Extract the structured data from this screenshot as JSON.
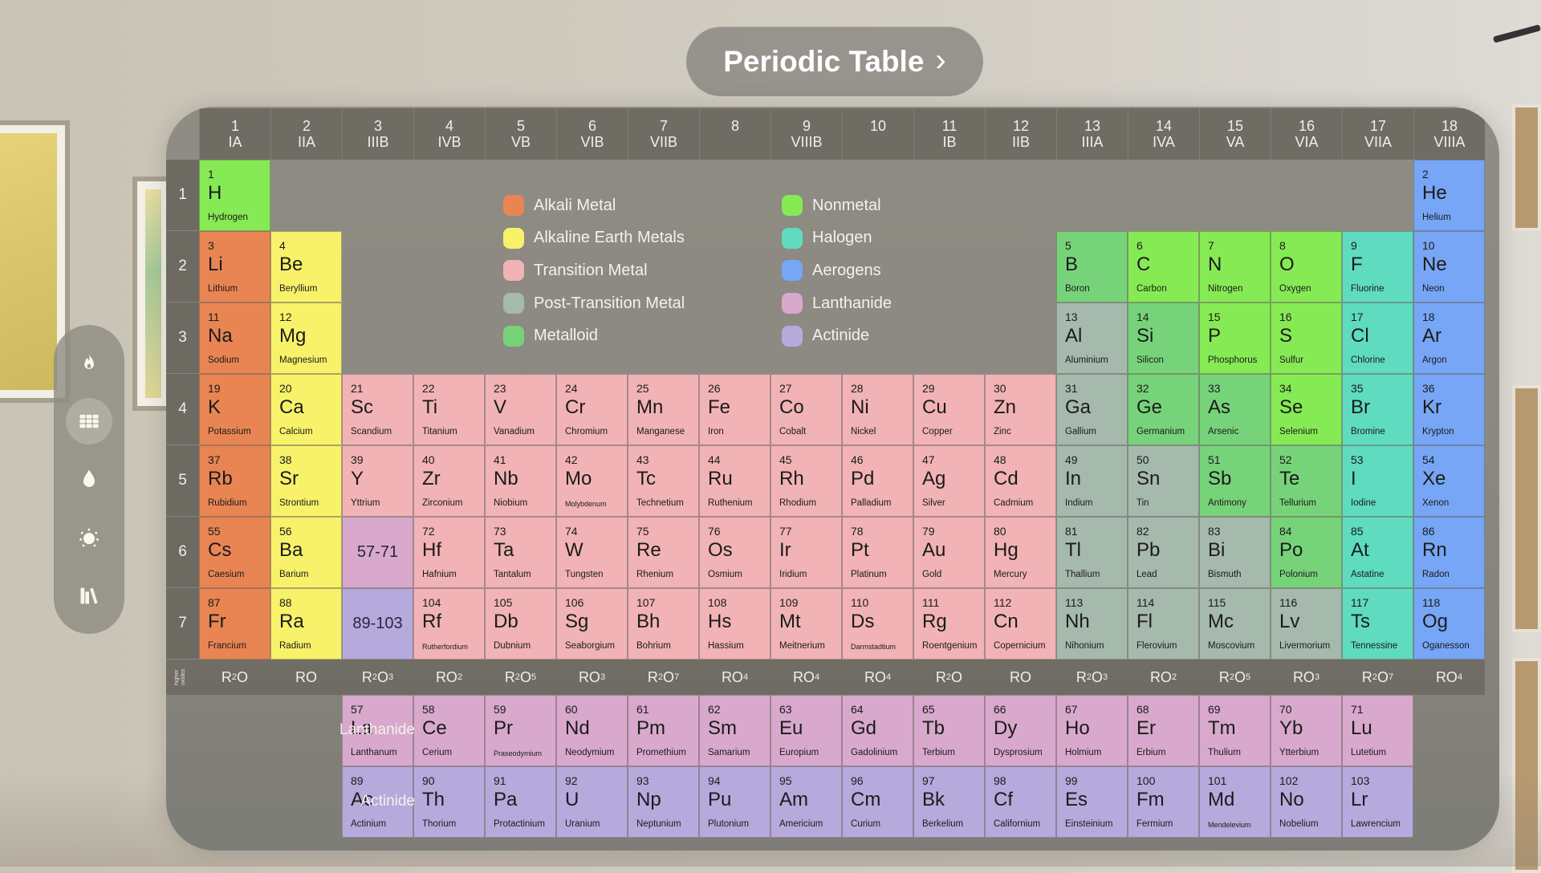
{
  "title": "Periodic Table",
  "title_chevron": "›",
  "sidebar": {
    "items": [
      {
        "id": "flame",
        "label": "Reactions",
        "active": false
      },
      {
        "id": "grid",
        "label": "Periodic Table",
        "active": true
      },
      {
        "id": "drop",
        "label": "Solutions",
        "active": false
      },
      {
        "id": "dial",
        "label": "Measurements",
        "active": false
      },
      {
        "id": "books",
        "label": "Library",
        "active": false
      }
    ]
  },
  "categories": {
    "alkali": {
      "label": "Alkali Metal",
      "color": "#e98553"
    },
    "alkaline": {
      "label": "Alkaline Earth Metals",
      "color": "#f7f26a"
    },
    "transition": {
      "label": "Transition Metal",
      "color": "#f1b3b5"
    },
    "post": {
      "label": "Post-Transition Metal",
      "color": "#a5b9ad"
    },
    "metalloid": {
      "label": "Metalloid",
      "color": "#77d37a"
    },
    "nonmetal": {
      "label": "Nonmetal",
      "color": "#86ea54"
    },
    "halogen": {
      "label": "Halogen",
      "color": "#5fdbbf"
    },
    "noble": {
      "label": "Aerogens",
      "color": "#76a6f5"
    },
    "lanthanide": {
      "label": "Lanthanide",
      "color": "#d8a9cc"
    },
    "actinide": {
      "label": "Actinide",
      "color": "#b6a9dc"
    }
  },
  "legend": {
    "left": [
      "alkali",
      "alkaline",
      "transition",
      "post",
      "metalloid"
    ],
    "right": [
      "nonmetal",
      "halogen",
      "noble",
      "lanthanide",
      "actinide"
    ]
  },
  "groups": [
    {
      "n": "1",
      "r": "IA"
    },
    {
      "n": "2",
      "r": "IIA"
    },
    {
      "n": "3",
      "r": "IIIB"
    },
    {
      "n": "4",
      "r": "IVB"
    },
    {
      "n": "5",
      "r": "VB"
    },
    {
      "n": "6",
      "r": "VIB"
    },
    {
      "n": "7",
      "r": "VIIB"
    },
    {
      "n": "8",
      "r": ""
    },
    {
      "n": "9",
      "r": "VIIIB"
    },
    {
      "n": "10",
      "r": ""
    },
    {
      "n": "11",
      "r": "IB"
    },
    {
      "n": "12",
      "r": "IIB"
    },
    {
      "n": "13",
      "r": "IIIA"
    },
    {
      "n": "14",
      "r": "IVA"
    },
    {
      "n": "15",
      "r": "VA"
    },
    {
      "n": "16",
      "r": "VIA"
    },
    {
      "n": "17",
      "r": "VIIA"
    },
    {
      "n": "18",
      "r": "VIIIA"
    }
  ],
  "periods": [
    "1",
    "2",
    "3",
    "4",
    "5",
    "6",
    "7"
  ],
  "oxides_label": "higher oxides",
  "oxides": [
    [
      "R",
      "2",
      "O",
      ""
    ],
    [
      "RO",
      "",
      ""
    ],
    [
      "R",
      "2",
      "O",
      "3"
    ],
    [
      "RO",
      "",
      "",
      "2"
    ],
    [
      "R",
      "2",
      "O",
      "5"
    ],
    [
      "RO",
      "",
      "",
      "3"
    ],
    [
      "R",
      "2",
      "O",
      "7"
    ],
    [
      "RO",
      "",
      "",
      "4"
    ],
    [
      "RO",
      "",
      "",
      "4"
    ],
    [
      "RO",
      "",
      "",
      "4"
    ],
    [
      "R",
      "2",
      "O",
      ""
    ],
    [
      "RO",
      "",
      ""
    ],
    [
      "R",
      "2",
      "O",
      "3"
    ],
    [
      "RO",
      "",
      "",
      "2"
    ],
    [
      "R",
      "2",
      "O",
      "5"
    ],
    [
      "RO",
      "",
      "",
      "3"
    ],
    [
      "R",
      "2",
      "O",
      "7"
    ],
    [
      "RO",
      "",
      "",
      "4"
    ]
  ],
  "series_labels": {
    "lanthanide": "Lanthanide",
    "actinide": "Actinide"
  },
  "placeholders": [
    {
      "text": "57-71",
      "row": 6,
      "col": 3,
      "cat": "lanthanide"
    },
    {
      "text": "89-103",
      "row": 7,
      "col": 3,
      "cat": "actinide"
    }
  ],
  "elements": [
    {
      "z": 1,
      "s": "H",
      "n": "Hydrogen",
      "r": 1,
      "c": 1,
      "cat": "nonmetal"
    },
    {
      "z": 2,
      "s": "He",
      "n": "Helium",
      "r": 1,
      "c": 18,
      "cat": "noble"
    },
    {
      "z": 3,
      "s": "Li",
      "n": "Lithium",
      "r": 2,
      "c": 1,
      "cat": "alkali"
    },
    {
      "z": 4,
      "s": "Be",
      "n": "Beryllium",
      "r": 2,
      "c": 2,
      "cat": "alkaline"
    },
    {
      "z": 5,
      "s": "B",
      "n": "Boron",
      "r": 2,
      "c": 13,
      "cat": "metalloid"
    },
    {
      "z": 6,
      "s": "C",
      "n": "Carbon",
      "r": 2,
      "c": 14,
      "cat": "nonmetal"
    },
    {
      "z": 7,
      "s": "N",
      "n": "Nitrogen",
      "r": 2,
      "c": 15,
      "cat": "nonmetal"
    },
    {
      "z": 8,
      "s": "O",
      "n": "Oxygen",
      "r": 2,
      "c": 16,
      "cat": "nonmetal"
    },
    {
      "z": 9,
      "s": "F",
      "n": "Fluorine",
      "r": 2,
      "c": 17,
      "cat": "halogen"
    },
    {
      "z": 10,
      "s": "Ne",
      "n": "Neon",
      "r": 2,
      "c": 18,
      "cat": "noble"
    },
    {
      "z": 11,
      "s": "Na",
      "n": "Sodium",
      "r": 3,
      "c": 1,
      "cat": "alkali"
    },
    {
      "z": 12,
      "s": "Mg",
      "n": "Magnesium",
      "r": 3,
      "c": 2,
      "cat": "alkaline"
    },
    {
      "z": 13,
      "s": "Al",
      "n": "Aluminium",
      "r": 3,
      "c": 13,
      "cat": "post"
    },
    {
      "z": 14,
      "s": "Si",
      "n": "Silicon",
      "r": 3,
      "c": 14,
      "cat": "metalloid"
    },
    {
      "z": 15,
      "s": "P",
      "n": "Phosphorus",
      "r": 3,
      "c": 15,
      "cat": "nonmetal"
    },
    {
      "z": 16,
      "s": "S",
      "n": "Sulfur",
      "r": 3,
      "c": 16,
      "cat": "nonmetal"
    },
    {
      "z": 17,
      "s": "Cl",
      "n": "Chlorine",
      "r": 3,
      "c": 17,
      "cat": "halogen"
    },
    {
      "z": 18,
      "s": "Ar",
      "n": "Argon",
      "r": 3,
      "c": 18,
      "cat": "noble"
    },
    {
      "z": 19,
      "s": "K",
      "n": "Potassium",
      "r": 4,
      "c": 1,
      "cat": "alkali"
    },
    {
      "z": 20,
      "s": "Ca",
      "n": "Calcium",
      "r": 4,
      "c": 2,
      "cat": "alkaline"
    },
    {
      "z": 21,
      "s": "Sc",
      "n": "Scandium",
      "r": 4,
      "c": 3,
      "cat": "transition"
    },
    {
      "z": 22,
      "s": "Ti",
      "n": "Titanium",
      "r": 4,
      "c": 4,
      "cat": "transition"
    },
    {
      "z": 23,
      "s": "V",
      "n": "Vanadium",
      "r": 4,
      "c": 5,
      "cat": "transition"
    },
    {
      "z": 24,
      "s": "Cr",
      "n": "Chromium",
      "r": 4,
      "c": 6,
      "cat": "transition"
    },
    {
      "z": 25,
      "s": "Mn",
      "n": "Manganese",
      "r": 4,
      "c": 7,
      "cat": "transition"
    },
    {
      "z": 26,
      "s": "Fe",
      "n": "Iron",
      "r": 4,
      "c": 8,
      "cat": "transition"
    },
    {
      "z": 27,
      "s": "Co",
      "n": "Cobalt",
      "r": 4,
      "c": 9,
      "cat": "transition"
    },
    {
      "z": 28,
      "s": "Ni",
      "n": "Nickel",
      "r": 4,
      "c": 10,
      "cat": "transition"
    },
    {
      "z": 29,
      "s": "Cu",
      "n": "Copper",
      "r": 4,
      "c": 11,
      "cat": "transition"
    },
    {
      "z": 30,
      "s": "Zn",
      "n": "Zinc",
      "r": 4,
      "c": 12,
      "cat": "transition"
    },
    {
      "z": 31,
      "s": "Ga",
      "n": "Gallium",
      "r": 4,
      "c": 13,
      "cat": "post"
    },
    {
      "z": 32,
      "s": "Ge",
      "n": "Germanium",
      "r": 4,
      "c": 14,
      "cat": "metalloid"
    },
    {
      "z": 33,
      "s": "As",
      "n": "Arsenic",
      "r": 4,
      "c": 15,
      "cat": "metalloid"
    },
    {
      "z": 34,
      "s": "Se",
      "n": "Selenium",
      "r": 4,
      "c": 16,
      "cat": "nonmetal"
    },
    {
      "z": 35,
      "s": "Br",
      "n": "Bromine",
      "r": 4,
      "c": 17,
      "cat": "halogen"
    },
    {
      "z": 36,
      "s": "Kr",
      "n": "Krypton",
      "r": 4,
      "c": 18,
      "cat": "noble"
    },
    {
      "z": 37,
      "s": "Rb",
      "n": "Rubidium",
      "r": 5,
      "c": 1,
      "cat": "alkali"
    },
    {
      "z": 38,
      "s": "Sr",
      "n": "Strontium",
      "r": 5,
      "c": 2,
      "cat": "alkaline"
    },
    {
      "z": 39,
      "s": "Y",
      "n": "Yttrium",
      "r": 5,
      "c": 3,
      "cat": "transition"
    },
    {
      "z": 40,
      "s": "Zr",
      "n": "Zirconium",
      "r": 5,
      "c": 4,
      "cat": "transition"
    },
    {
      "z": 41,
      "s": "Nb",
      "n": "Niobium",
      "r": 5,
      "c": 5,
      "cat": "transition"
    },
    {
      "z": 42,
      "s": "Mo",
      "n": "Molybdenum",
      "r": 5,
      "c": 6,
      "cat": "transition",
      "small": true
    },
    {
      "z": 43,
      "s": "Tc",
      "n": "Technetium",
      "r": 5,
      "c": 7,
      "cat": "transition"
    },
    {
      "z": 44,
      "s": "Ru",
      "n": "Ruthenium",
      "r": 5,
      "c": 8,
      "cat": "transition"
    },
    {
      "z": 45,
      "s": "Rh",
      "n": "Rhodium",
      "r": 5,
      "c": 9,
      "cat": "transition"
    },
    {
      "z": 46,
      "s": "Pd",
      "n": "Palladium",
      "r": 5,
      "c": 10,
      "cat": "transition"
    },
    {
      "z": 47,
      "s": "Ag",
      "n": "Silver",
      "r": 5,
      "c": 11,
      "cat": "transition"
    },
    {
      "z": 48,
      "s": "Cd",
      "n": "Cadmium",
      "r": 5,
      "c": 12,
      "cat": "transition"
    },
    {
      "z": 49,
      "s": "In",
      "n": "Indium",
      "r": 5,
      "c": 13,
      "cat": "post"
    },
    {
      "z": 50,
      "s": "Sn",
      "n": "Tin",
      "r": 5,
      "c": 14,
      "cat": "post"
    },
    {
      "z": 51,
      "s": "Sb",
      "n": "Antimony",
      "r": 5,
      "c": 15,
      "cat": "metalloid"
    },
    {
      "z": 52,
      "s": "Te",
      "n": "Tellurium",
      "r": 5,
      "c": 16,
      "cat": "metalloid"
    },
    {
      "z": 53,
      "s": "I",
      "n": "Iodine",
      "r": 5,
      "c": 17,
      "cat": "halogen"
    },
    {
      "z": 54,
      "s": "Xe",
      "n": "Xenon",
      "r": 5,
      "c": 18,
      "cat": "noble"
    },
    {
      "z": 55,
      "s": "Cs",
      "n": "Caesium",
      "r": 6,
      "c": 1,
      "cat": "alkali"
    },
    {
      "z": 56,
      "s": "Ba",
      "n": "Barium",
      "r": 6,
      "c": 2,
      "cat": "alkaline"
    },
    {
      "z": 72,
      "s": "Hf",
      "n": "Hafnium",
      "r": 6,
      "c": 4,
      "cat": "transition"
    },
    {
      "z": 73,
      "s": "Ta",
      "n": "Tantalum",
      "r": 6,
      "c": 5,
      "cat": "transition"
    },
    {
      "z": 74,
      "s": "W",
      "n": "Tungsten",
      "r": 6,
      "c": 6,
      "cat": "transition"
    },
    {
      "z": 75,
      "s": "Re",
      "n": "Rhenium",
      "r": 6,
      "c": 7,
      "cat": "transition"
    },
    {
      "z": 76,
      "s": "Os",
      "n": "Osmium",
      "r": 6,
      "c": 8,
      "cat": "transition"
    },
    {
      "z": 77,
      "s": "Ir",
      "n": "Iridium",
      "r": 6,
      "c": 9,
      "cat": "transition"
    },
    {
      "z": 78,
      "s": "Pt",
      "n": "Platinum",
      "r": 6,
      "c": 10,
      "cat": "transition"
    },
    {
      "z": 79,
      "s": "Au",
      "n": "Gold",
      "r": 6,
      "c": 11,
      "cat": "transition"
    },
    {
      "z": 80,
      "s": "Hg",
      "n": "Mercury",
      "r": 6,
      "c": 12,
      "cat": "transition"
    },
    {
      "z": 81,
      "s": "Tl",
      "n": "Thallium",
      "r": 6,
      "c": 13,
      "cat": "post"
    },
    {
      "z": 82,
      "s": "Pb",
      "n": "Lead",
      "r": 6,
      "c": 14,
      "cat": "post"
    },
    {
      "z": 83,
      "s": "Bi",
      "n": "Bismuth",
      "r": 6,
      "c": 15,
      "cat": "post"
    },
    {
      "z": 84,
      "s": "Po",
      "n": "Polonium",
      "r": 6,
      "c": 16,
      "cat": "metalloid"
    },
    {
      "z": 85,
      "s": "At",
      "n": "Astatine",
      "r": 6,
      "c": 17,
      "cat": "halogen"
    },
    {
      "z": 86,
      "s": "Rn",
      "n": "Radon",
      "r": 6,
      "c": 18,
      "cat": "noble"
    },
    {
      "z": 87,
      "s": "Fr",
      "n": "Francium",
      "r": 7,
      "c": 1,
      "cat": "alkali"
    },
    {
      "z": 88,
      "s": "Ra",
      "n": "Radium",
      "r": 7,
      "c": 2,
      "cat": "alkaline"
    },
    {
      "z": 104,
      "s": "Rf",
      "n": "Rutherfordium",
      "r": 7,
      "c": 4,
      "cat": "transition",
      "small": true
    },
    {
      "z": 105,
      "s": "Db",
      "n": "Dubnium",
      "r": 7,
      "c": 5,
      "cat": "transition"
    },
    {
      "z": 106,
      "s": "Sg",
      "n": "Seaborgium",
      "r": 7,
      "c": 6,
      "cat": "transition"
    },
    {
      "z": 107,
      "s": "Bh",
      "n": "Bohrium",
      "r": 7,
      "c": 7,
      "cat": "transition"
    },
    {
      "z": 108,
      "s": "Hs",
      "n": "Hassium",
      "r": 7,
      "c": 8,
      "cat": "transition"
    },
    {
      "z": 109,
      "s": "Mt",
      "n": "Meitnerium",
      "r": 7,
      "c": 9,
      "cat": "transition"
    },
    {
      "z": 110,
      "s": "Ds",
      "n": "Darmstadtium",
      "r": 7,
      "c": 10,
      "cat": "transition",
      "small": true
    },
    {
      "z": 111,
      "s": "Rg",
      "n": "Roentgenium",
      "r": 7,
      "c": 11,
      "cat": "transition"
    },
    {
      "z": 112,
      "s": "Cn",
      "n": "Copernicium",
      "r": 7,
      "c": 12,
      "cat": "transition"
    },
    {
      "z": 113,
      "s": "Nh",
      "n": "Nihonium",
      "r": 7,
      "c": 13,
      "cat": "post"
    },
    {
      "z": 114,
      "s": "Fl",
      "n": "Flerovium",
      "r": 7,
      "c": 14,
      "cat": "post"
    },
    {
      "z": 115,
      "s": "Mc",
      "n": "Moscovium",
      "r": 7,
      "c": 15,
      "cat": "post"
    },
    {
      "z": 116,
      "s": "Lv",
      "n": "Livermorium",
      "r": 7,
      "c": 16,
      "cat": "post"
    },
    {
      "z": 117,
      "s": "Ts",
      "n": "Tennessine",
      "r": 7,
      "c": 17,
      "cat": "halogen"
    },
    {
      "z": 118,
      "s": "Og",
      "n": "Oganesson",
      "r": 7,
      "c": 18,
      "cat": "noble"
    },
    {
      "z": 57,
      "s": "La",
      "n": "Lanthanum",
      "r": 9,
      "c": 3,
      "cat": "lanthanide"
    },
    {
      "z": 58,
      "s": "Ce",
      "n": "Cerium",
      "r": 9,
      "c": 4,
      "cat": "lanthanide"
    },
    {
      "z": 59,
      "s": "Pr",
      "n": "Praseodymium",
      "r": 9,
      "c": 5,
      "cat": "lanthanide",
      "small": true
    },
    {
      "z": 60,
      "s": "Nd",
      "n": "Neodymium",
      "r": 9,
      "c": 6,
      "cat": "lanthanide"
    },
    {
      "z": 61,
      "s": "Pm",
      "n": "Promethium",
      "r": 9,
      "c": 7,
      "cat": "lanthanide"
    },
    {
      "z": 62,
      "s": "Sm",
      "n": "Samarium",
      "r": 9,
      "c": 8,
      "cat": "lanthanide"
    },
    {
      "z": 63,
      "s": "Eu",
      "n": "Europium",
      "r": 9,
      "c": 9,
      "cat": "lanthanide"
    },
    {
      "z": 64,
      "s": "Gd",
      "n": "Gadolinium",
      "r": 9,
      "c": 10,
      "cat": "lanthanide"
    },
    {
      "z": 65,
      "s": "Tb",
      "n": "Terbium",
      "r": 9,
      "c": 11,
      "cat": "lanthanide"
    },
    {
      "z": 66,
      "s": "Dy",
      "n": "Dysprosium",
      "r": 9,
      "c": 12,
      "cat": "lanthanide"
    },
    {
      "z": 67,
      "s": "Ho",
      "n": "Holmium",
      "r": 9,
      "c": 13,
      "cat": "lanthanide"
    },
    {
      "z": 68,
      "s": "Er",
      "n": "Erbium",
      "r": 9,
      "c": 14,
      "cat": "lanthanide"
    },
    {
      "z": 69,
      "s": "Tm",
      "n": "Thulium",
      "r": 9,
      "c": 15,
      "cat": "lanthanide"
    },
    {
      "z": 70,
      "s": "Yb",
      "n": "Ytterbium",
      "r": 9,
      "c": 16,
      "cat": "lanthanide"
    },
    {
      "z": 71,
      "s": "Lu",
      "n": "Lutetium",
      "r": 9,
      "c": 17,
      "cat": "lanthanide"
    },
    {
      "z": 89,
      "s": "Ac",
      "n": "Actinium",
      "r": 10,
      "c": 3,
      "cat": "actinide"
    },
    {
      "z": 90,
      "s": "Th",
      "n": "Thorium",
      "r": 10,
      "c": 4,
      "cat": "actinide"
    },
    {
      "z": 91,
      "s": "Pa",
      "n": "Protactinium",
      "r": 10,
      "c": 5,
      "cat": "actinide"
    },
    {
      "z": 92,
      "s": "U",
      "n": "Uranium",
      "r": 10,
      "c": 6,
      "cat": "actinide"
    },
    {
      "z": 93,
      "s": "Np",
      "n": "Neptunium",
      "r": 10,
      "c": 7,
      "cat": "actinide"
    },
    {
      "z": 94,
      "s": "Pu",
      "n": "Plutonium",
      "r": 10,
      "c": 8,
      "cat": "actinide"
    },
    {
      "z": 95,
      "s": "Am",
      "n": "Americium",
      "r": 10,
      "c": 9,
      "cat": "actinide"
    },
    {
      "z": 96,
      "s": "Cm",
      "n": "Curium",
      "r": 10,
      "c": 10,
      "cat": "actinide"
    },
    {
      "z": 97,
      "s": "Bk",
      "n": "Berkelium",
      "r": 10,
      "c": 11,
      "cat": "actinide"
    },
    {
      "z": 98,
      "s": "Cf",
      "n": "Californium",
      "r": 10,
      "c": 12,
      "cat": "actinide"
    },
    {
      "z": 99,
      "s": "Es",
      "n": "Einsteinium",
      "r": 10,
      "c": 13,
      "cat": "actinide"
    },
    {
      "z": 100,
      "s": "Fm",
      "n": "Fermium",
      "r": 10,
      "c": 14,
      "cat": "actinide"
    },
    {
      "z": 101,
      "s": "Md",
      "n": "Mendelevium",
      "r": 10,
      "c": 15,
      "cat": "actinide",
      "small": true
    },
    {
      "z": 102,
      "s": "No",
      "n": "Nobelium",
      "r": 10,
      "c": 16,
      "cat": "actinide"
    },
    {
      "z": 103,
      "s": "Lr",
      "n": "Lawrencium",
      "r": 10,
      "c": 17,
      "cat": "actinide"
    }
  ]
}
